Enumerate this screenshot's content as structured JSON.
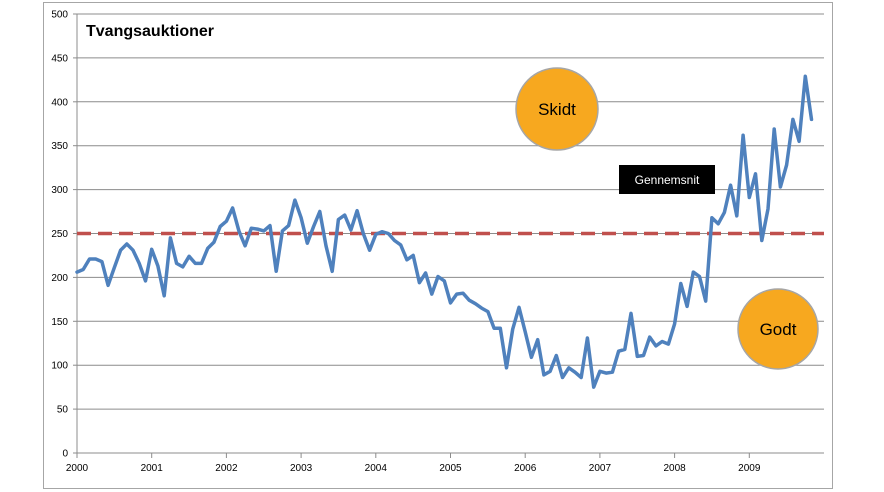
{
  "chart_data": {
    "type": "line",
    "title": "Tvangsauktioner",
    "xlabel": "",
    "ylabel": "",
    "ylim": [
      0,
      500
    ],
    "yticks": [
      0,
      50,
      100,
      150,
      200,
      250,
      300,
      350,
      400,
      450,
      500
    ],
    "xlim": [
      2000,
      2010
    ],
    "xticks": [
      "2000",
      "2001",
      "2002",
      "2003",
      "2004",
      "2005",
      "2006",
      "2007",
      "2008",
      "2009"
    ],
    "grid": true,
    "series": [
      {
        "name": "",
        "color": "#4f81bd",
        "x_start": 2000,
        "step": "monthly",
        "values": [
          206,
          209,
          221,
          221,
          218,
          191,
          211,
          231,
          238,
          231,
          216,
          196,
          232,
          213,
          179,
          245,
          216,
          212,
          224,
          216,
          216,
          233,
          240,
          258,
          264,
          279,
          253,
          236,
          256,
          255,
          253,
          259,
          207,
          253,
          259,
          288,
          268,
          239,
          258,
          275,
          236,
          207,
          266,
          271,
          254,
          276,
          250,
          231,
          249,
          252,
          250,
          242,
          237,
          220,
          225,
          194,
          205,
          181,
          201,
          196,
          171,
          181,
          182,
          174,
          170,
          165,
          161,
          142,
          142,
          97,
          141,
          166,
          138,
          109,
          129,
          89,
          93,
          111,
          86,
          97,
          92,
          86,
          131,
          75,
          93,
          91,
          92,
          116,
          118,
          159,
          110,
          111,
          132,
          122,
          127,
          124,
          147,
          193,
          167,
          206,
          201,
          173,
          268,
          261,
          274,
          305,
          270,
          362,
          291,
          318,
          242,
          278,
          369,
          303,
          328,
          380,
          355,
          429,
          380
        ]
      },
      {
        "name": "Gennemsnit",
        "color": "#c0504d",
        "style": "dashed",
        "values": [
          250,
          250
        ]
      }
    ],
    "legend": {
      "label": "Gennemsnit",
      "placement": "center-right"
    },
    "annotations": [
      {
        "text": "Skidt",
        "color": "#f7a81f"
      },
      {
        "text": "Godt",
        "color": "#f7a81f"
      }
    ]
  }
}
